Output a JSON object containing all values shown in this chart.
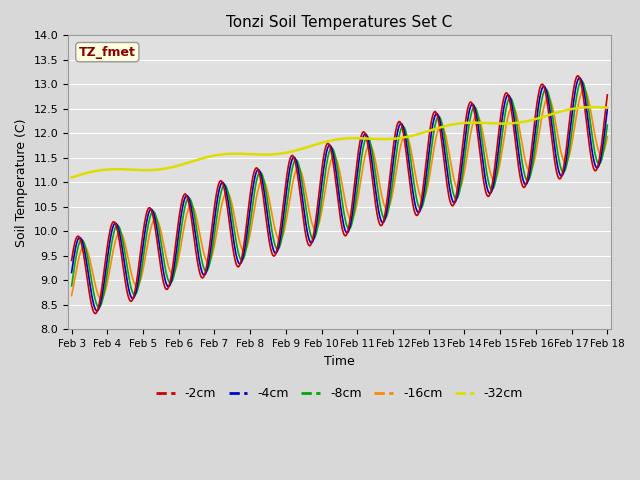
{
  "title": "Tonzi Soil Temperatures Set C",
  "xlabel": "Time",
  "ylabel": "Soil Temperature (C)",
  "ylim": [
    8.0,
    14.0
  ],
  "yticks": [
    8.0,
    8.5,
    9.0,
    9.5,
    10.0,
    10.5,
    11.0,
    11.5,
    12.0,
    12.5,
    13.0,
    13.5,
    14.0
  ],
  "x_labels": [
    "Feb 3",
    "Feb 4",
    "Feb 5",
    "Feb 6",
    "Feb 7",
    "Feb 8",
    "Feb 9",
    "Feb 10",
    "Feb 11",
    "Feb 12",
    "Feb 13",
    "Feb 14",
    "Feb 15",
    "Feb 16",
    "Feb 17",
    "Feb 18"
  ],
  "label_annotation": "TZ_fmet",
  "series": {
    "-2cm": {
      "color": "#cc0000",
      "lw": 1.2
    },
    "-4cm": {
      "color": "#0000cc",
      "lw": 1.2
    },
    "-8cm": {
      "color": "#00aa00",
      "lw": 1.2
    },
    "-16cm": {
      "color": "#ff8800",
      "lw": 1.2
    },
    "-32cm": {
      "color": "#dddd00",
      "lw": 1.8
    }
  },
  "fig_facecolor": "#d8d8d8",
  "ax_facecolor": "#e0e0e0",
  "grid_color": "#ffffff",
  "n_points": 720
}
